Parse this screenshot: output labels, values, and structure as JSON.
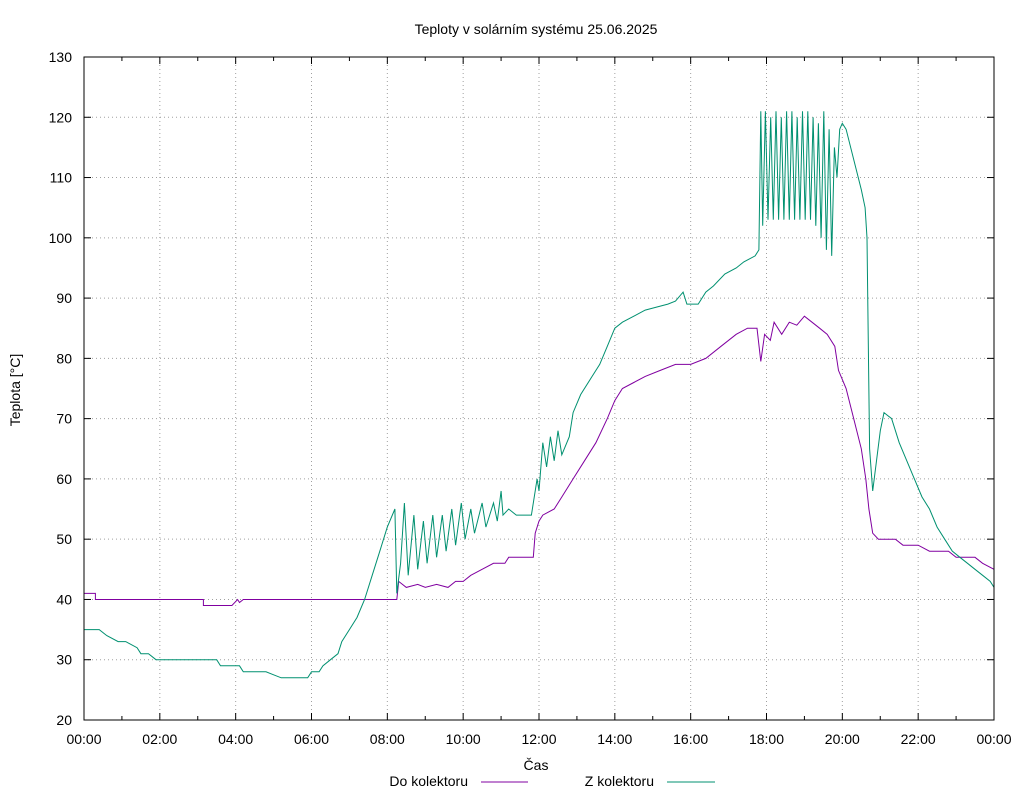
{
  "chart_data": {
    "type": "line",
    "title": "Teploty v solárním systému 25.06.2025",
    "xlabel": "Čas",
    "ylabel": "Teplota [°C]",
    "xlim": [
      0,
      24
    ],
    "ylim": [
      20,
      130
    ],
    "grid": true,
    "legend_position": "bottom",
    "x_ticks": [
      "00:00",
      "02:00",
      "04:00",
      "06:00",
      "08:00",
      "10:00",
      "12:00",
      "14:00",
      "16:00",
      "18:00",
      "20:00",
      "22:00",
      "00:00"
    ],
    "y_ticks": [
      20,
      30,
      40,
      50,
      60,
      70,
      80,
      90,
      100,
      110,
      120,
      130
    ],
    "series": [
      {
        "name": "Do kolektoru",
        "color": "#8000a0",
        "points": [
          [
            0,
            41
          ],
          [
            0.3,
            41
          ],
          [
            0.3,
            40
          ],
          [
            1,
            40
          ],
          [
            2,
            40
          ],
          [
            3,
            40
          ],
          [
            3.15,
            40
          ],
          [
            3.15,
            39
          ],
          [
            3.9,
            39
          ],
          [
            4.05,
            40
          ],
          [
            4.1,
            39.5
          ],
          [
            4.2,
            40
          ],
          [
            5,
            40
          ],
          [
            6,
            40
          ],
          [
            7,
            40
          ],
          [
            8,
            40
          ],
          [
            8.25,
            40
          ],
          [
            8.3,
            43
          ],
          [
            8.5,
            42
          ],
          [
            8.8,
            42.5
          ],
          [
            9,
            42
          ],
          [
            9.3,
            42.5
          ],
          [
            9.6,
            42
          ],
          [
            9.8,
            43
          ],
          [
            10,
            43
          ],
          [
            10.2,
            44
          ],
          [
            10.5,
            45
          ],
          [
            10.8,
            46
          ],
          [
            11.1,
            46
          ],
          [
            11.2,
            47
          ],
          [
            11.5,
            47
          ],
          [
            11.85,
            47
          ],
          [
            11.9,
            51
          ],
          [
            12.0,
            53
          ],
          [
            12.1,
            54
          ],
          [
            12.4,
            55
          ],
          [
            12.6,
            57
          ],
          [
            12.9,
            60
          ],
          [
            13.2,
            63
          ],
          [
            13.5,
            66
          ],
          [
            13.8,
            70
          ],
          [
            14.0,
            73
          ],
          [
            14.2,
            75
          ],
          [
            14.5,
            76
          ],
          [
            14.8,
            77
          ],
          [
            15.2,
            78
          ],
          [
            15.6,
            79
          ],
          [
            16.0,
            79
          ],
          [
            16.4,
            80
          ],
          [
            16.8,
            82
          ],
          [
            17.2,
            84
          ],
          [
            17.5,
            85
          ],
          [
            17.75,
            85
          ],
          [
            17.85,
            79.5
          ],
          [
            17.95,
            84
          ],
          [
            18.1,
            83
          ],
          [
            18.2,
            86
          ],
          [
            18.4,
            84
          ],
          [
            18.6,
            86
          ],
          [
            18.8,
            85.5
          ],
          [
            19.0,
            87
          ],
          [
            19.2,
            86
          ],
          [
            19.4,
            85
          ],
          [
            19.6,
            84
          ],
          [
            19.8,
            82
          ],
          [
            19.9,
            78
          ],
          [
            20.1,
            75
          ],
          [
            20.3,
            70
          ],
          [
            20.5,
            65
          ],
          [
            20.62,
            60
          ],
          [
            20.7,
            55
          ],
          [
            20.8,
            51
          ],
          [
            20.95,
            50
          ],
          [
            21.4,
            50
          ],
          [
            21.6,
            49
          ],
          [
            22.0,
            49
          ],
          [
            22.3,
            48
          ],
          [
            22.8,
            48
          ],
          [
            23.0,
            47
          ],
          [
            23.5,
            47
          ],
          [
            23.7,
            46
          ],
          [
            24.0,
            45
          ]
        ]
      },
      {
        "name": "Z kolektoru",
        "color": "#009070",
        "points": [
          [
            0,
            35
          ],
          [
            0.4,
            35
          ],
          [
            0.6,
            34
          ],
          [
            0.9,
            33
          ],
          [
            1.1,
            33
          ],
          [
            1.4,
            32
          ],
          [
            1.5,
            31
          ],
          [
            1.7,
            31
          ],
          [
            1.9,
            30
          ],
          [
            2.4,
            30
          ],
          [
            3,
            30
          ],
          [
            3.5,
            30
          ],
          [
            3.6,
            29
          ],
          [
            4.1,
            29
          ],
          [
            4.2,
            28
          ],
          [
            4.8,
            28
          ],
          [
            5.0,
            27.5
          ],
          [
            5.2,
            27
          ],
          [
            5.9,
            27
          ],
          [
            6.0,
            28
          ],
          [
            6.2,
            28
          ],
          [
            6.3,
            29
          ],
          [
            6.5,
            30
          ],
          [
            6.7,
            31
          ],
          [
            6.8,
            33
          ],
          [
            7.0,
            35
          ],
          [
            7.2,
            37
          ],
          [
            7.4,
            40
          ],
          [
            7.6,
            44
          ],
          [
            7.8,
            48
          ],
          [
            8.0,
            52
          ],
          [
            8.2,
            55
          ],
          [
            8.25,
            41
          ],
          [
            8.35,
            46
          ],
          [
            8.45,
            56
          ],
          [
            8.55,
            44
          ],
          [
            8.7,
            54
          ],
          [
            8.8,
            45
          ],
          [
            8.95,
            53
          ],
          [
            9.05,
            46
          ],
          [
            9.2,
            54
          ],
          [
            9.3,
            47
          ],
          [
            9.45,
            54
          ],
          [
            9.55,
            48
          ],
          [
            9.7,
            55
          ],
          [
            9.8,
            49
          ],
          [
            9.95,
            56
          ],
          [
            10.05,
            50
          ],
          [
            10.2,
            55
          ],
          [
            10.3,
            51
          ],
          [
            10.5,
            56
          ],
          [
            10.6,
            52
          ],
          [
            10.8,
            56
          ],
          [
            10.9,
            53
          ],
          [
            11.0,
            58
          ],
          [
            11.05,
            54
          ],
          [
            11.2,
            55
          ],
          [
            11.4,
            54
          ],
          [
            11.6,
            54
          ],
          [
            11.8,
            54
          ],
          [
            11.95,
            60
          ],
          [
            12.0,
            58
          ],
          [
            12.1,
            66
          ],
          [
            12.2,
            62
          ],
          [
            12.3,
            67
          ],
          [
            12.4,
            63
          ],
          [
            12.5,
            68
          ],
          [
            12.6,
            64
          ],
          [
            12.8,
            67
          ],
          [
            12.9,
            71
          ],
          [
            13.1,
            74
          ],
          [
            13.4,
            77
          ],
          [
            13.6,
            79
          ],
          [
            13.8,
            82
          ],
          [
            14.0,
            85
          ],
          [
            14.2,
            86
          ],
          [
            14.5,
            87
          ],
          [
            14.8,
            88
          ],
          [
            15.1,
            88.5
          ],
          [
            15.4,
            89
          ],
          [
            15.6,
            89.5
          ],
          [
            15.8,
            91
          ],
          [
            15.9,
            89
          ],
          [
            16.2,
            89
          ],
          [
            16.4,
            91
          ],
          [
            16.6,
            92
          ],
          [
            16.9,
            94
          ],
          [
            17.2,
            95
          ],
          [
            17.4,
            96
          ],
          [
            17.7,
            97
          ],
          [
            17.8,
            98
          ],
          [
            17.85,
            121
          ],
          [
            17.9,
            102
          ],
          [
            17.97,
            121
          ],
          [
            18.04,
            103
          ],
          [
            18.11,
            120
          ],
          [
            18.18,
            103
          ],
          [
            18.25,
            121
          ],
          [
            18.32,
            103
          ],
          [
            18.39,
            120
          ],
          [
            18.46,
            103
          ],
          [
            18.53,
            121
          ],
          [
            18.6,
            103
          ],
          [
            18.67,
            121
          ],
          [
            18.74,
            103
          ],
          [
            18.81,
            120
          ],
          [
            18.88,
            103
          ],
          [
            18.95,
            121
          ],
          [
            19.02,
            103
          ],
          [
            19.09,
            121
          ],
          [
            19.16,
            103
          ],
          [
            19.23,
            120
          ],
          [
            19.3,
            102
          ],
          [
            19.37,
            119
          ],
          [
            19.44,
            100
          ],
          [
            19.51,
            121
          ],
          [
            19.58,
            98
          ],
          [
            19.65,
            118
          ],
          [
            19.72,
            97
          ],
          [
            19.79,
            115
          ],
          [
            19.86,
            110
          ],
          [
            19.93,
            118
          ],
          [
            20.0,
            119
          ],
          [
            20.1,
            118
          ],
          [
            20.3,
            113
          ],
          [
            20.5,
            108
          ],
          [
            20.6,
            105
          ],
          [
            20.65,
            100
          ],
          [
            20.72,
            65
          ],
          [
            20.8,
            58
          ],
          [
            20.9,
            63
          ],
          [
            21.0,
            68
          ],
          [
            21.1,
            71
          ],
          [
            21.3,
            70
          ],
          [
            21.5,
            66
          ],
          [
            21.7,
            63
          ],
          [
            21.9,
            60
          ],
          [
            22.1,
            57
          ],
          [
            22.3,
            55
          ],
          [
            22.5,
            52
          ],
          [
            22.7,
            50
          ],
          [
            22.9,
            48
          ],
          [
            23.1,
            47
          ],
          [
            23.3,
            46
          ],
          [
            23.5,
            45
          ],
          [
            23.7,
            44
          ],
          [
            23.9,
            43
          ],
          [
            24.0,
            42
          ]
        ]
      }
    ]
  }
}
